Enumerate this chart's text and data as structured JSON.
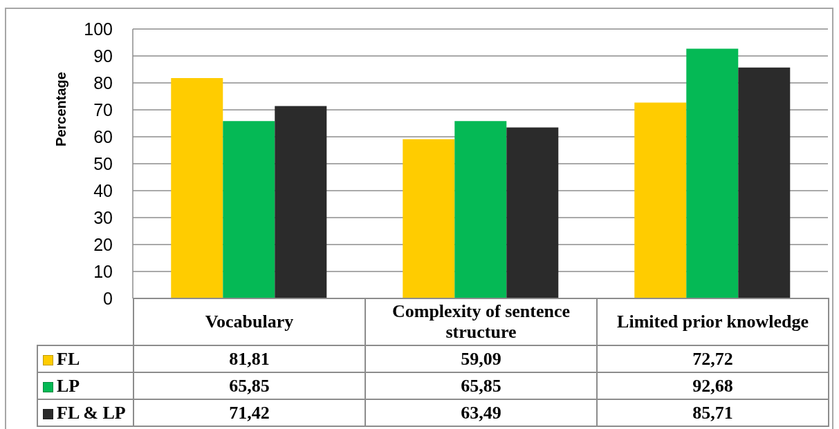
{
  "chart_data": {
    "type": "bar",
    "ylabel": "Percentage",
    "categories": [
      "Vocabulary",
      "Complexity of sentence structure",
      "Limited prior knowledge"
    ],
    "series": [
      {
        "name": "FL",
        "color": "#ffcc00",
        "values": [
          81.81,
          59.09,
          72.72
        ],
        "value_labels": [
          "81,81",
          "59,09",
          "72,72"
        ]
      },
      {
        "name": "LP",
        "color": "#05b955",
        "values": [
          65.85,
          65.85,
          92.68
        ],
        "value_labels": [
          "65,85",
          "65,85",
          "92,68"
        ]
      },
      {
        "name": "FL & LP",
        "color": "#2b2b2b",
        "values": [
          71.42,
          63.49,
          85.71
        ],
        "value_labels": [
          "71,42",
          "63,49",
          "85,71"
        ]
      }
    ],
    "ylim": [
      0,
      100
    ],
    "yticks": [
      0,
      10,
      20,
      30,
      40,
      50,
      60,
      70,
      80,
      90,
      100
    ],
    "grid": "y",
    "legend": "bottom left"
  }
}
